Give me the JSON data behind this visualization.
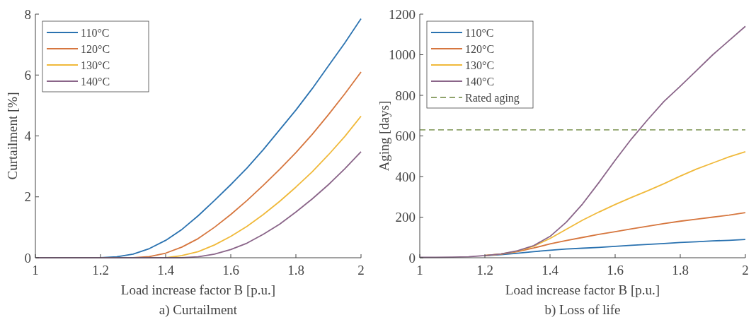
{
  "chart_data": [
    {
      "type": "line",
      "title": "a) Curtailment",
      "xlabel": "Load increase factor B [p.u.]",
      "ylabel": "Curtailment [%]",
      "xlim": [
        1,
        2
      ],
      "xticks": [
        1,
        1.2,
        1.4,
        1.6,
        1.8,
        2
      ],
      "ylim": [
        0,
        8
      ],
      "yticks": [
        0,
        2,
        4,
        6,
        8
      ],
      "grid": false,
      "legend": "top left",
      "line_style": "solid",
      "marker": "none",
      "x": [
        1,
        1.05,
        1.1,
        1.15,
        1.2,
        1.25,
        1.3,
        1.35,
        1.4,
        1.45,
        1.5,
        1.55,
        1.6,
        1.65,
        1.7,
        1.75,
        1.8,
        1.85,
        1.9,
        1.95,
        2
      ],
      "series": [
        {
          "name": "110°C",
          "color": "#2a72b0",
          "values": [
            null,
            null,
            null,
            null,
            0,
            0.03,
            0.12,
            0.3,
            0.57,
            0.93,
            1.38,
            1.88,
            2.4,
            2.95,
            3.55,
            4.2,
            4.85,
            5.55,
            6.3,
            7.05,
            7.85
          ]
        },
        {
          "name": "120°C",
          "color": "#d6763e",
          "values": [
            null,
            null,
            null,
            null,
            null,
            null,
            0,
            0.04,
            0.15,
            0.35,
            0.63,
            1.0,
            1.42,
            1.88,
            2.38,
            2.9,
            3.45,
            4.05,
            4.7,
            5.38,
            6.1
          ]
        },
        {
          "name": "130°C",
          "color": "#f0b93a",
          "values": [
            null,
            null,
            null,
            null,
            null,
            null,
            null,
            null,
            0,
            0.07,
            0.2,
            0.42,
            0.7,
            1.03,
            1.42,
            1.85,
            2.32,
            2.82,
            3.38,
            3.98,
            4.65
          ]
        },
        {
          "name": "140°C",
          "color": "#8a6589",
          "values": [
            0,
            0,
            0,
            0,
            0,
            0,
            0,
            0,
            0,
            0,
            0.03,
            0.12,
            0.27,
            0.48,
            0.77,
            1.1,
            1.5,
            1.93,
            2.4,
            2.92,
            3.48
          ]
        }
      ]
    },
    {
      "type": "line",
      "title": "b) Loss of life",
      "xlabel": "Load increase factor B [p.u.]",
      "ylabel": "Aging [days]",
      "xlim": [
        1,
        2
      ],
      "xticks": [
        1,
        1.2,
        1.4,
        1.6,
        1.8,
        2
      ],
      "ylim": [
        0,
        1200
      ],
      "yticks": [
        0,
        200,
        400,
        600,
        800,
        1000,
        1200
      ],
      "grid": false,
      "legend": "top left",
      "line_style": "solid",
      "marker": "none",
      "x": [
        1,
        1.05,
        1.1,
        1.15,
        1.2,
        1.25,
        1.3,
        1.35,
        1.4,
        1.45,
        1.5,
        1.55,
        1.6,
        1.65,
        1.7,
        1.75,
        1.8,
        1.85,
        1.9,
        1.95,
        2
      ],
      "series": [
        {
          "name": "110°C",
          "color": "#2a72b0",
          "values": [
            null,
            null,
            null,
            null,
            10,
            15,
            22,
            30,
            37,
            43,
            47,
            51,
            56,
            61,
            66,
            70,
            75,
            79,
            83,
            86,
            90
          ]
        },
        {
          "name": "120°C",
          "color": "#d6763e",
          "values": [
            null,
            null,
            null,
            null,
            11,
            18,
            30,
            48,
            68,
            85,
            100,
            115,
            128,
            142,
            155,
            168,
            180,
            190,
            200,
            210,
            222
          ]
        },
        {
          "name": "130°C",
          "color": "#f0b93a",
          "values": [
            null,
            null,
            null,
            null,
            11,
            19,
            33,
            57,
            95,
            140,
            185,
            225,
            262,
            297,
            330,
            365,
            402,
            437,
            467,
            497,
            522
          ]
        },
        {
          "name": "140°C",
          "color": "#8a6589",
          "values": [
            2,
            2,
            3,
            5,
            11,
            19,
            34,
            60,
            105,
            175,
            265,
            370,
            480,
            585,
            680,
            770,
            845,
            922,
            1000,
            1070,
            1140
          ]
        }
      ],
      "ref_lines": [
        {
          "axis": "y",
          "value": 630,
          "label": "Rated aging",
          "color": "#8fa36b",
          "line_style": "dashed"
        }
      ]
    }
  ]
}
